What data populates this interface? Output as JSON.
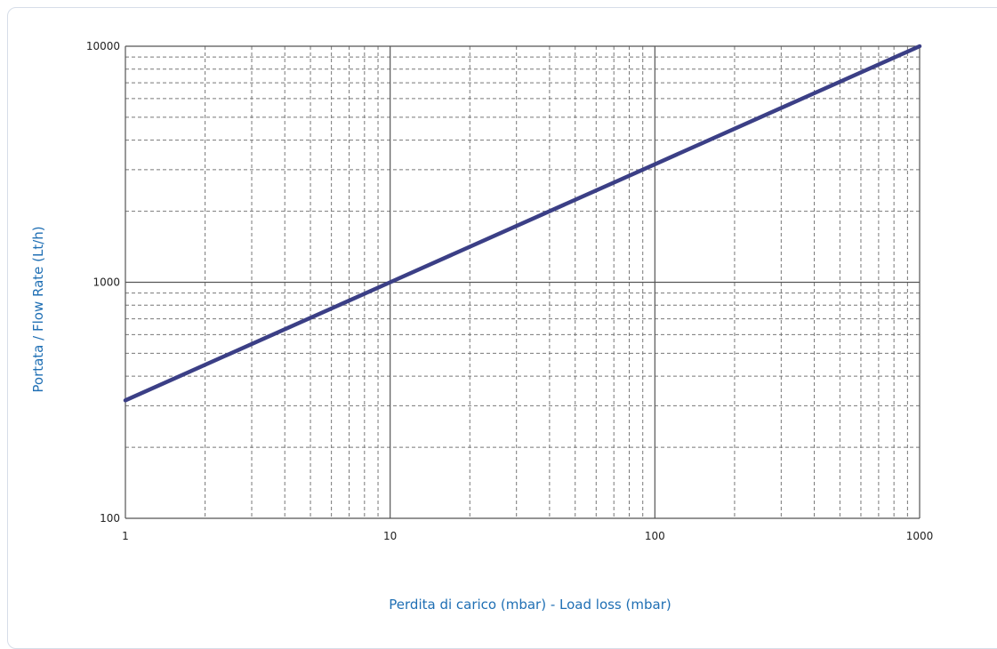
{
  "chart_data": {
    "type": "line",
    "title": "",
    "xlabel": "Perdita di carico (mbar) - Load loss (mbar)",
    "ylabel": "Portata / Flow Rate (Lt/h)",
    "x_scale": "log",
    "y_scale": "log",
    "xlim": [
      1,
      1000
    ],
    "ylim": [
      100,
      10000
    ],
    "x_ticks": [
      "1",
      "10",
      "100",
      "1000"
    ],
    "y_ticks": [
      "100",
      "1000",
      "10000"
    ],
    "grid": true,
    "minor_grid": "dashed",
    "series": [
      {
        "name": "",
        "x": [
          1,
          10,
          100,
          1000
        ],
        "y": [
          316,
          1000,
          3162,
          10000
        ]
      }
    ]
  },
  "colors": {
    "series_line": "#3b3f86",
    "axis_title": "#1f6fb4",
    "major_grid": "#555555",
    "minor_grid": "#777777"
  }
}
